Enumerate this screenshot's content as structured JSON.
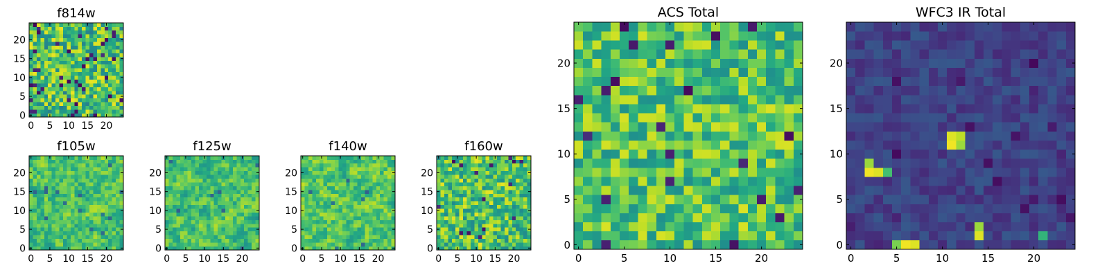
{
  "figure": {
    "type": "heatmap-grid",
    "colormap": "viridis"
  },
  "chart_data": [
    {
      "id": "f814w",
      "type": "heatmap",
      "title": "f814w",
      "grid_size": 25,
      "cmap": "viridis",
      "xlim": [
        0,
        24
      ],
      "ylim": [
        0,
        24
      ],
      "xticks": [
        0,
        5,
        10,
        15,
        20
      ],
      "yticks": [
        0,
        5,
        10,
        15,
        20
      ],
      "values": "sparse noise, mostly 0.55–0.95 with scattered dark pixels",
      "seed": 11,
      "base": 0.7,
      "spread": 0.55,
      "dark_prob": 0.06,
      "bright_prob": 0.0,
      "smooth": 0,
      "hotspots": []
    },
    {
      "id": "f105w",
      "type": "heatmap",
      "title": "f105w",
      "grid_size": 25,
      "cmap": "viridis",
      "xlim": [
        0,
        24
      ],
      "ylim": [
        0,
        24
      ],
      "xticks": [
        0,
        5,
        10,
        15,
        20
      ],
      "yticks": [
        0,
        5,
        10,
        15,
        20
      ],
      "seed": 23,
      "base": 0.72,
      "spread": 0.5,
      "dark_prob": 0.015,
      "bright_prob": 0.0,
      "smooth": 1,
      "hotspots": []
    },
    {
      "id": "f125w",
      "type": "heatmap",
      "title": "f125w",
      "grid_size": 25,
      "cmap": "viridis",
      "xlim": [
        0,
        24
      ],
      "ylim": [
        0,
        24
      ],
      "xticks": [
        0,
        5,
        10,
        15,
        20
      ],
      "yticks": [
        0,
        5,
        10,
        15,
        20
      ],
      "seed": 37,
      "base": 0.7,
      "spread": 0.5,
      "dark_prob": 0.012,
      "bright_prob": 0.0,
      "smooth": 1,
      "hotspots": []
    },
    {
      "id": "f140w",
      "type": "heatmap",
      "title": "f140w",
      "grid_size": 25,
      "cmap": "viridis",
      "xlim": [
        0,
        24
      ],
      "ylim": [
        0,
        24
      ],
      "xticks": [
        0,
        5,
        10,
        15,
        20
      ],
      "yticks": [
        0,
        5,
        10,
        15,
        20
      ],
      "seed": 41,
      "base": 0.73,
      "spread": 0.5,
      "dark_prob": 0.012,
      "bright_prob": 0.0,
      "smooth": 1,
      "hotspots": []
    },
    {
      "id": "f160w",
      "type": "heatmap",
      "title": "f160w",
      "grid_size": 25,
      "cmap": "viridis",
      "xlim": [
        0,
        24
      ],
      "ylim": [
        0,
        24
      ],
      "xticks": [
        0,
        5,
        10,
        15,
        20
      ],
      "yticks": [
        0,
        5,
        10,
        15,
        20
      ],
      "seed": 53,
      "base": 0.72,
      "spread": 0.5,
      "dark_prob": 0.03,
      "bright_prob": 0.0,
      "smooth": 0,
      "hotspots": []
    },
    {
      "id": "acs",
      "type": "heatmap",
      "title": "ACS Total",
      "grid_size": 25,
      "cmap": "viridis",
      "xlim": [
        0,
        24
      ],
      "ylim": [
        0,
        24
      ],
      "xticks": [
        0,
        5,
        10,
        15,
        20
      ],
      "yticks": [
        0,
        5,
        10,
        15,
        20
      ],
      "seed": 67,
      "base": 0.72,
      "spread": 0.45,
      "dark_prob": 0.025,
      "bright_prob": 0.0,
      "smooth": 0,
      "hotspots": []
    },
    {
      "id": "wfc3",
      "type": "heatmap",
      "title": "WFC3 IR Total",
      "grid_size": 25,
      "cmap": "viridis",
      "xlim": [
        0,
        24
      ],
      "ylim": [
        0,
        24
      ],
      "xticks": [
        0,
        5,
        10,
        15,
        20
      ],
      "yticks": [
        0,
        5,
        10,
        15,
        20
      ],
      "seed": 79,
      "base": 0.2,
      "spread": 0.16,
      "dark_prob": 0.04,
      "bright_prob": 0.0,
      "smooth": 0,
      "hotspots": [
        {
          "x": 11,
          "y": 11,
          "v": 0.98
        },
        {
          "x": 12,
          "y": 11,
          "v": 0.85
        },
        {
          "x": 11,
          "y": 12,
          "v": 0.95
        },
        {
          "x": 12,
          "y": 12,
          "v": 0.9
        },
        {
          "x": 2,
          "y": 8,
          "v": 0.98
        },
        {
          "x": 3,
          "y": 8,
          "v": 0.95
        },
        {
          "x": 2,
          "y": 9,
          "v": 0.85
        },
        {
          "x": 4,
          "y": 8,
          "v": 0.7
        },
        {
          "x": 14,
          "y": 2,
          "v": 0.85
        },
        {
          "x": 14,
          "y": 1,
          "v": 0.95
        },
        {
          "x": 6,
          "y": 0,
          "v": 0.98
        },
        {
          "x": 7,
          "y": 0,
          "v": 0.95
        },
        {
          "x": 5,
          "y": 0,
          "v": 0.8
        },
        {
          "x": 21,
          "y": 1,
          "v": 0.65
        }
      ]
    }
  ]
}
